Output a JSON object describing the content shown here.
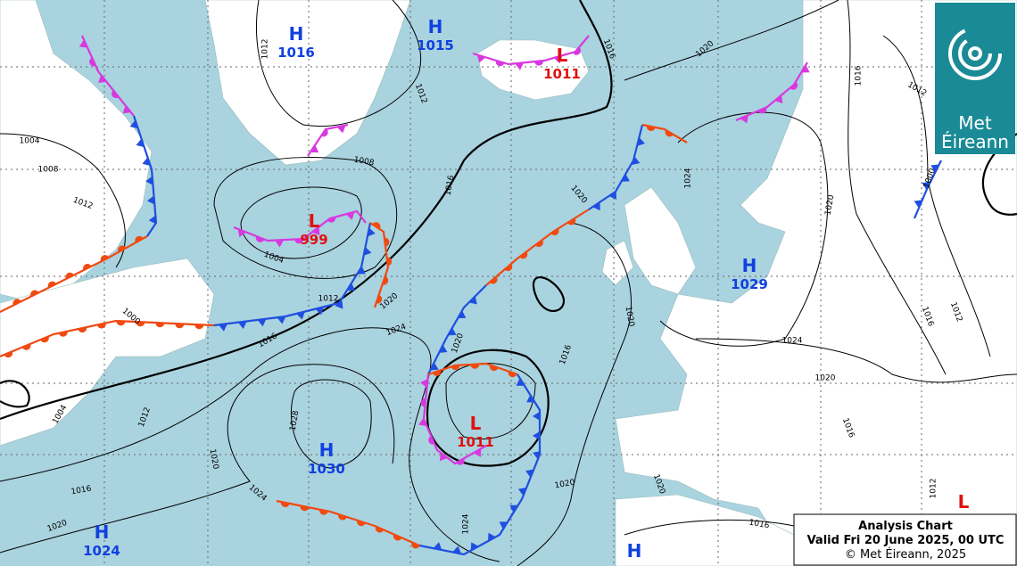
{
  "pressure_centres": [
    {
      "letter": "H",
      "value": "1016"
    },
    {
      "letter": "H",
      "value": "1015"
    },
    {
      "letter": "L",
      "value": "1011"
    },
    {
      "letter": "L",
      "value": "999"
    },
    {
      "letter": "H",
      "value": "1029"
    },
    {
      "letter": "L",
      "value": "1011"
    },
    {
      "letter": "H",
      "value": "1030"
    },
    {
      "letter": "H",
      "value": "1024"
    },
    {
      "letter": "H"
    },
    {
      "letter": "L"
    }
  ],
  "isobar_labels": [
    "1012",
    "1016",
    "1020",
    "1012",
    "1004",
    "1008",
    "1012",
    "1008",
    "1016",
    "1020",
    "1024",
    "1012",
    "1016",
    "1020",
    "1004",
    "1012",
    "1020",
    "1016",
    "1024",
    "1020",
    "1016",
    "1020",
    "1024",
    "1020",
    "1000",
    "1004",
    "1012",
    "1028",
    "1020",
    "1024",
    "1016",
    "1020",
    "1024",
    "1020",
    "1020",
    "1016",
    "1016",
    "1016",
    "1012",
    "1012",
    "1000"
  ],
  "caption": {
    "title": "Analysis Chart",
    "valid": "Valid Fri 20 June 2025, 00 UTC",
    "copyright": "© Met Éireann, 2025"
  },
  "logo": {
    "line1": "Met",
    "line2": "Éireann"
  }
}
